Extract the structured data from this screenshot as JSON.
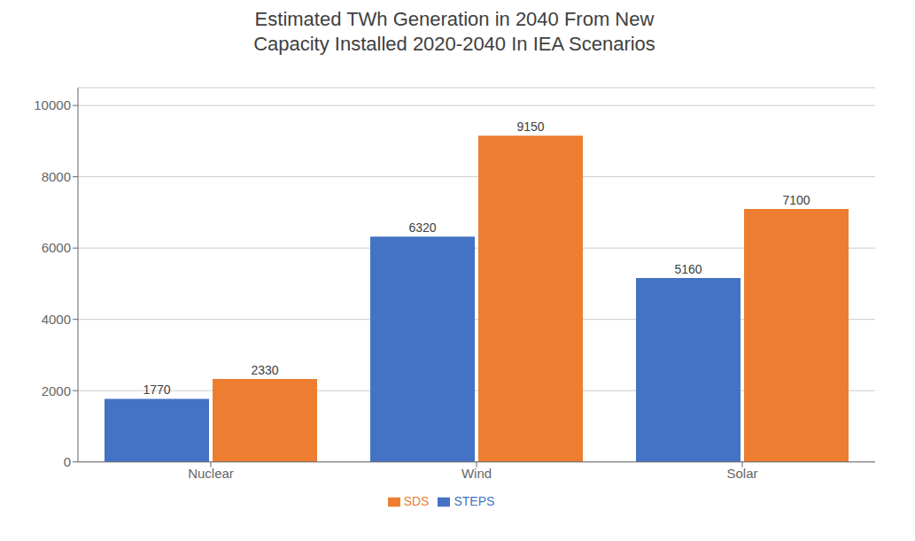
{
  "chart_data": {
    "type": "bar",
    "title": "Estimated TWh Generation in 2040 From New\nCapacity Installed 2020-2040 In IEA Scenarios",
    "categories": [
      "Nuclear",
      "Wind",
      "Solar"
    ],
    "series": [
      {
        "name": "STEPS",
        "color": "#4472C4",
        "values": [
          1770,
          6320,
          5160
        ]
      },
      {
        "name": "SDS",
        "color": "#ED7D31",
        "values": [
          2330,
          9150,
          7100
        ]
      }
    ],
    "ylim": [
      0,
      10500
    ],
    "yticks": [
      0,
      2000,
      4000,
      6000,
      8000,
      10000
    ],
    "grid": true,
    "legend": "bottom",
    "data_labels": true
  }
}
